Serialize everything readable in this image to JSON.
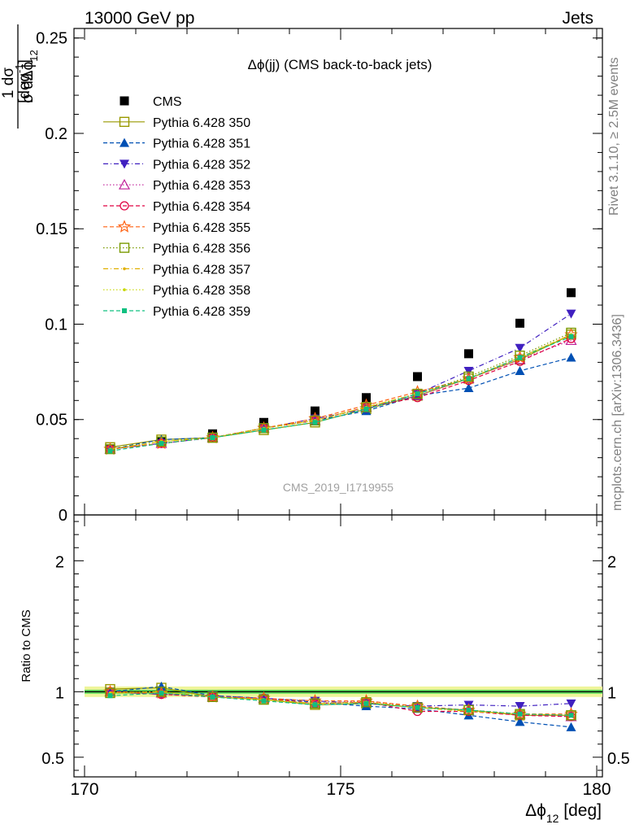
{
  "header": {
    "left": "13000 GeV pp",
    "right": "Jets"
  },
  "side_labels": {
    "rivet": "Rivet 3.1.10, ≥ 2.5M events",
    "mcplots": "mcplots.cern.ch [arXiv:1306.3436]"
  },
  "chart_data": [
    {
      "type": "scatter",
      "panel": "main",
      "title": "Δϕ(jj) (CMS back-to-back jets)",
      "watermark": "CMS_2019_I1719955",
      "ylabel": "1/σ dσ/dΔϕ12 [deg-1]",
      "xlim": [
        170,
        180
      ],
      "ylim": [
        0,
        0.255
      ],
      "y_ticks": [
        "0",
        "0.05",
        "0.1",
        "0.15",
        "0.2",
        "0.25"
      ],
      "y_tick_values": [
        0,
        0.05,
        0.1,
        0.15,
        0.2,
        0.25
      ],
      "legend_position": "top-left",
      "x": [
        170.5,
        171.5,
        172.5,
        173.5,
        174.5,
        175.5,
        176.5,
        177.5,
        178.5,
        179.5
      ],
      "series": [
        {
          "name": "CMS",
          "color": "#000000",
          "marker": "square-filled",
          "line": "none",
          "values": [
            0.0345,
            0.0385,
            0.0425,
            0.0485,
            0.0545,
            0.0615,
            0.0725,
            0.0845,
            0.1005,
            0.1165
          ]
        },
        {
          "name": "Pythia 6.428 350",
          "color": "#999900",
          "marker": "square-open",
          "line": "solid",
          "values": [
            0.0355,
            0.0395,
            0.0405,
            0.0445,
            0.0485,
            0.0555,
            0.0625,
            0.0715,
            0.0815,
            0.0945
          ]
        },
        {
          "name": "Pythia 6.428 351",
          "color": "#0050b4",
          "marker": "triangle-up-filled",
          "line": "dashed",
          "values": [
            0.0345,
            0.0395,
            0.0405,
            0.0455,
            0.0495,
            0.0545,
            0.0625,
            0.0665,
            0.0755,
            0.0825
          ]
        },
        {
          "name": "Pythia 6.428 352",
          "color": "#4020c0",
          "marker": "triangle-down-filled",
          "line": "dashdot",
          "values": [
            0.0345,
            0.0375,
            0.0405,
            0.0455,
            0.0505,
            0.0555,
            0.0635,
            0.0755,
            0.0875,
            0.1055
          ]
        },
        {
          "name": "Pythia 6.428 353",
          "color": "#c0209a",
          "marker": "triangle-up-open",
          "line": "dotted",
          "values": [
            0.0345,
            0.0375,
            0.0405,
            0.0455,
            0.0495,
            0.0565,
            0.0625,
            0.0715,
            0.0815,
            0.0915
          ]
        },
        {
          "name": "Pythia 6.428 354",
          "color": "#e00040",
          "marker": "circle-open",
          "line": "dashed",
          "values": [
            0.0345,
            0.0375,
            0.0405,
            0.0455,
            0.0495,
            0.0565,
            0.0615,
            0.0705,
            0.0805,
            0.0925
          ]
        },
        {
          "name": "Pythia 6.428 355",
          "color": "#ff6010",
          "marker": "star-open",
          "line": "dashed",
          "values": [
            0.0345,
            0.0375,
            0.0405,
            0.0455,
            0.0505,
            0.0575,
            0.0645,
            0.0715,
            0.0825,
            0.0945
          ]
        },
        {
          "name": "Pythia 6.428 356",
          "color": "#7a9a00",
          "marker": "square-open",
          "line": "dotted",
          "values": [
            0.0345,
            0.0385,
            0.0405,
            0.0455,
            0.0495,
            0.0565,
            0.0635,
            0.0725,
            0.0835,
            0.0955
          ]
        },
        {
          "name": "Pythia 6.428 357",
          "color": "#e0b000",
          "marker": "small-dot",
          "line": "dashdot",
          "values": [
            0.0345,
            0.0385,
            0.0405,
            0.0455,
            0.0495,
            0.0565,
            0.0635,
            0.0715,
            0.0825,
            0.0945
          ]
        },
        {
          "name": "Pythia 6.428 358",
          "color": "#c8d800",
          "marker": "small-dot",
          "line": "dotted",
          "values": [
            0.0345,
            0.0385,
            0.0405,
            0.0455,
            0.0495,
            0.0565,
            0.0635,
            0.0715,
            0.0825,
            0.0945
          ]
        },
        {
          "name": "Pythia 6.428 359",
          "color": "#10c080",
          "marker": "small-square",
          "line": "dashed",
          "values": [
            0.0335,
            0.0375,
            0.0405,
            0.0445,
            0.0485,
            0.0555,
            0.0635,
            0.0715,
            0.0825,
            0.0935
          ]
        }
      ]
    },
    {
      "type": "line",
      "panel": "ratio",
      "ylabel": "Ratio to CMS",
      "xlabel": "Δϕ12 [deg]",
      "xlim": [
        170,
        180
      ],
      "ylim": [
        0.35,
        2.35
      ],
      "x_ticks": [
        "170",
        "175",
        "180"
      ],
      "x_tick_values": [
        170,
        175,
        180
      ],
      "y_ticks": [
        "0.5",
        "1",
        "2"
      ],
      "y_tick_values": [
        0.5,
        1,
        2
      ],
      "band": {
        "center": 1.0,
        "inner": [
          0.985,
          1.015
        ],
        "outer": [
          0.96,
          1.04
        ],
        "inner_color": "#5ad85a",
        "outer_color": "#eef59a"
      },
      "x": [
        170.5,
        171.5,
        172.5,
        173.5,
        174.5,
        175.5,
        176.5,
        177.5,
        178.5,
        179.5
      ],
      "series": [
        {
          "name": "Pythia 6.428 350",
          "values": [
            1.02,
            1.03,
            0.96,
            0.94,
            0.9,
            0.91,
            0.88,
            0.86,
            0.82,
            0.82
          ]
        },
        {
          "name": "Pythia 6.428 351",
          "values": [
            1.0,
            1.04,
            0.97,
            0.95,
            0.92,
            0.89,
            0.87,
            0.82,
            0.77,
            0.73
          ]
        },
        {
          "name": "Pythia 6.428 352",
          "values": [
            1.0,
            0.98,
            0.97,
            0.95,
            0.93,
            0.91,
            0.89,
            0.9,
            0.89,
            0.91
          ]
        },
        {
          "name": "Pythia 6.428 353",
          "values": [
            1.0,
            0.99,
            0.96,
            0.95,
            0.91,
            0.93,
            0.88,
            0.86,
            0.83,
            0.81
          ]
        },
        {
          "name": "Pythia 6.428 354",
          "values": [
            1.0,
            0.98,
            0.96,
            0.95,
            0.91,
            0.92,
            0.85,
            0.85,
            0.82,
            0.81
          ]
        },
        {
          "name": "Pythia 6.428 355",
          "values": [
            1.0,
            0.99,
            0.96,
            0.95,
            0.93,
            0.93,
            0.89,
            0.86,
            0.83,
            0.83
          ]
        },
        {
          "name": "Pythia 6.428 356",
          "values": [
            0.99,
            1.0,
            0.96,
            0.94,
            0.91,
            0.92,
            0.88,
            0.86,
            0.83,
            0.82
          ]
        },
        {
          "name": "Pythia 6.428 357",
          "values": [
            0.99,
            1.0,
            0.96,
            0.94,
            0.91,
            0.92,
            0.88,
            0.85,
            0.83,
            0.82
          ]
        },
        {
          "name": "Pythia 6.428 358",
          "values": [
            0.99,
            1.0,
            0.96,
            0.94,
            0.91,
            0.92,
            0.88,
            0.85,
            0.83,
            0.82
          ]
        },
        {
          "name": "Pythia 6.428 359",
          "values": [
            0.97,
            0.99,
            0.96,
            0.93,
            0.9,
            0.91,
            0.88,
            0.86,
            0.83,
            0.82
          ]
        }
      ]
    }
  ]
}
